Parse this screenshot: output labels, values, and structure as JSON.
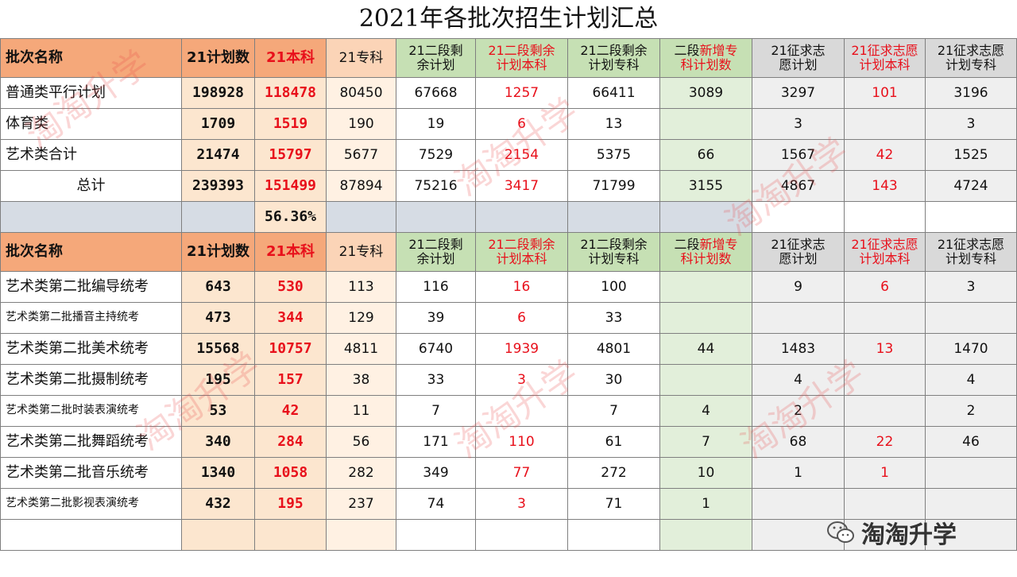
{
  "title": "2021年各批次招生计划汇总",
  "headers": {
    "name": "批次名称",
    "plan": "21计划数",
    "ben": "21本科",
    "zhuan": "21专科",
    "rem_plan_a": "21二段剩",
    "rem_plan_b": "余计划",
    "rem_ben_a": "21二段剩余",
    "rem_ben_b": "计划本科",
    "rem_zhuan_a": "21二段剩余",
    "rem_zhuan_b": "计划专科",
    "new_a1": "二段",
    "new_a2": "新增专",
    "new_b": "科计划数",
    "zq_plan_a": "21征求志",
    "zq_plan_b": "愿计划",
    "zq_ben_a": "21征求志愿",
    "zq_ben_b": "计划本科",
    "zq_zhuan_a": "21征求志愿",
    "zq_zhuan_b": "计划专科"
  },
  "section1": [
    {
      "name": "普通类平行计划",
      "plan": "198928",
      "ben": "118478",
      "zhuan": "80450",
      "rem": "67668",
      "rem_ben": "1257",
      "rem_zhuan": "66411",
      "new": "3089",
      "zq": "3297",
      "zq_ben": "101",
      "zq_zhuan": "3196"
    },
    {
      "name": "体育类",
      "plan": "1709",
      "ben": "1519",
      "zhuan": "190",
      "rem": "19",
      "rem_ben": "6",
      "rem_zhuan": "13",
      "new": "",
      "zq": "3",
      "zq_ben": "",
      "zq_zhuan": "3"
    },
    {
      "name": "艺术类合计",
      "plan": "21474",
      "ben": "15797",
      "zhuan": "5677",
      "rem": "7529",
      "rem_ben": "2154",
      "rem_zhuan": "5375",
      "new": "66",
      "zq": "1567",
      "zq_ben": "42",
      "zq_zhuan": "1525"
    }
  ],
  "total": {
    "name": "总计",
    "plan": "239393",
    "ben": "151499",
    "zhuan": "87894",
    "rem": "75216",
    "rem_ben": "3417",
    "rem_zhuan": "71799",
    "new": "3155",
    "zq": "4867",
    "zq_ben": "143",
    "zq_zhuan": "4724"
  },
  "percent": "56.36%",
  "section2": [
    {
      "name": "艺术类第二批编导统考",
      "plan": "643",
      "ben": "530",
      "zhuan": "113",
      "rem": "116",
      "rem_ben": "16",
      "rem_zhuan": "100",
      "new": "",
      "zq": "9",
      "zq_ben": "6",
      "zq_zhuan": "3"
    },
    {
      "name": "艺术类第二批播音主持统考",
      "plan": "473",
      "ben": "344",
      "zhuan": "129",
      "rem": "39",
      "rem_ben": "6",
      "rem_zhuan": "33",
      "new": "",
      "zq": "",
      "zq_ben": "",
      "zq_zhuan": ""
    },
    {
      "name": "艺术类第二批美术统考",
      "plan": "15568",
      "ben": "10757",
      "zhuan": "4811",
      "rem": "6740",
      "rem_ben": "1939",
      "rem_zhuan": "4801",
      "new": "44",
      "zq": "1483",
      "zq_ben": "13",
      "zq_zhuan": "1470"
    },
    {
      "name": "艺术类第二批摄制统考",
      "plan": "195",
      "ben": "157",
      "zhuan": "38",
      "rem": "33",
      "rem_ben": "3",
      "rem_zhuan": "30",
      "new": "",
      "zq": "4",
      "zq_ben": "",
      "zq_zhuan": "4"
    },
    {
      "name": "艺术类第二批时装表演统考",
      "plan": "53",
      "ben": "42",
      "zhuan": "11",
      "rem": "7",
      "rem_ben": "",
      "rem_zhuan": "7",
      "new": "4",
      "zq": "2",
      "zq_ben": "",
      "zq_zhuan": "2"
    },
    {
      "name": "艺术类第二批舞蹈统考",
      "plan": "340",
      "ben": "284",
      "zhuan": "56",
      "rem": "171",
      "rem_ben": "110",
      "rem_zhuan": "61",
      "new": "7",
      "zq": "68",
      "zq_ben": "22",
      "zq_zhuan": "46"
    },
    {
      "name": "艺术类第二批音乐统考",
      "plan": "1340",
      "ben": "1058",
      "zhuan": "282",
      "rem": "349",
      "rem_ben": "77",
      "rem_zhuan": "272",
      "new": "10",
      "zq": "1",
      "zq_ben": "1",
      "zq_zhuan": ""
    },
    {
      "name": "艺术类第二批影视表演统考",
      "plan": "432",
      "ben": "195",
      "zhuan": "237",
      "rem": "74",
      "rem_ben": "3",
      "rem_zhuan": "71",
      "new": "1",
      "zq": "",
      "zq_ben": "",
      "zq_zhuan": ""
    }
  ],
  "watermark": "淘淘升学",
  "logo_text": "淘淘升学",
  "logo_icon": "wechat-icon"
}
